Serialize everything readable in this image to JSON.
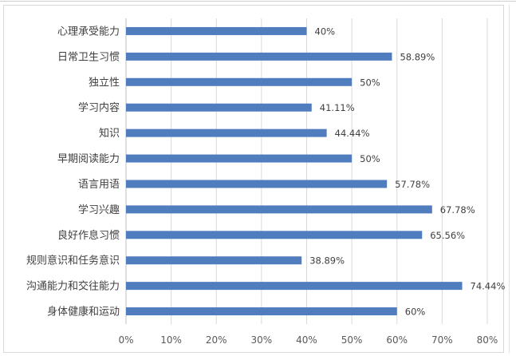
{
  "chart_data": {
    "type": "bar",
    "orientation": "horizontal",
    "title": "",
    "xlabel": "",
    "ylabel": "",
    "categories": [
      "心理承受能力",
      "日常卫生习惯",
      "独立性",
      "学习内容",
      "知识",
      "早期阅读能力",
      "语言用语",
      "学习兴趣",
      "良好作息习惯",
      "规则意识和任务意识",
      "沟通能力和交往能力",
      "身体健康和运动"
    ],
    "values": [
      40,
      58.89,
      50,
      41.11,
      44.44,
      50,
      57.78,
      67.78,
      65.56,
      38.89,
      74.44,
      60
    ],
    "value_labels": [
      "40%",
      "58.89%",
      "50%",
      "41.11%",
      "44.44%",
      "50%",
      "57.78%",
      "67.78%",
      "65.56%",
      "38.89%",
      "74.44%",
      "60%"
    ],
    "xlim": [
      0,
      80
    ],
    "x_ticks": [
      "0%",
      "10%",
      "20%",
      "30%",
      "40%",
      "50%",
      "60%",
      "70%",
      "80%"
    ],
    "grid": "vertical",
    "legend": "none",
    "bar_color": "#4f7dbd",
    "grid_color": "#d9d9d9"
  }
}
